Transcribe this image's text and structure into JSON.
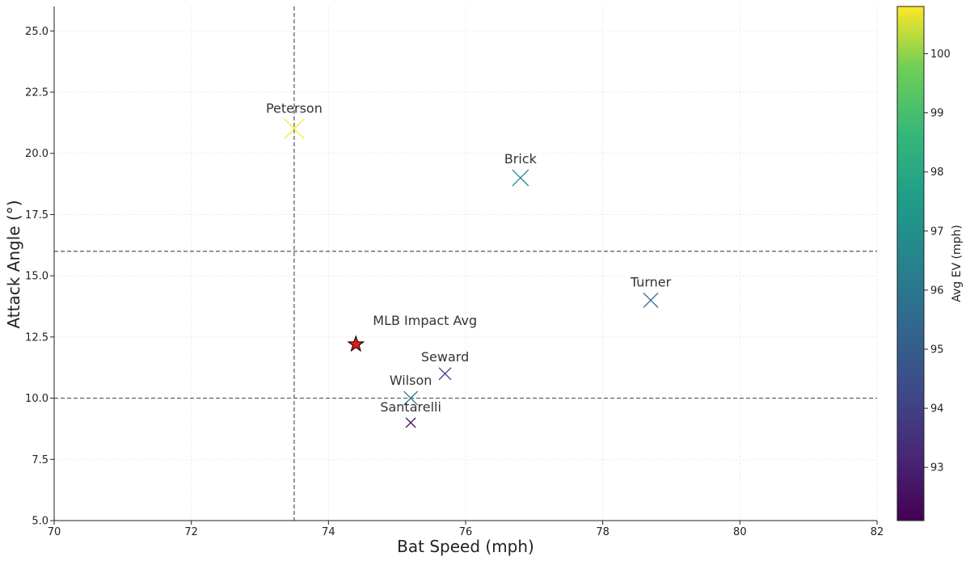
{
  "chart_data": {
    "type": "scatter",
    "title": "",
    "xlabel": "Bat Speed (mph)",
    "ylabel": "Attack Angle (°)",
    "xlim": [
      70,
      82
    ],
    "ylim": [
      5,
      26
    ],
    "xticks": [
      70,
      72,
      74,
      76,
      78,
      80,
      82
    ],
    "xtick_labels": [
      "70",
      "72",
      "74",
      "76",
      "78",
      "80",
      "82"
    ],
    "yticks": [
      5,
      7.5,
      10,
      12.5,
      15,
      17.5,
      20,
      22.5,
      25
    ],
    "ytick_labels": [
      "5.0",
      "7.5",
      "10.0",
      "12.5",
      "15.0",
      "17.5",
      "20.0",
      "22.5",
      "25.0"
    ],
    "grid": true,
    "reference_lines": {
      "vertical_x": [
        73.5
      ],
      "horizontal_y": [
        10,
        16
      ]
    },
    "points": [
      {
        "name": "Peterson",
        "x": 73.5,
        "y": 21,
        "ev": 100.8,
        "marker_size": 24
      },
      {
        "name": "Brick",
        "x": 76.8,
        "y": 19,
        "ev": 96.5,
        "marker_size": 20
      },
      {
        "name": "Turner",
        "x": 78.7,
        "y": 14,
        "ev": 95.3,
        "marker_size": 18
      },
      {
        "name": "Seward",
        "x": 75.7,
        "y": 11,
        "ev": 93.7,
        "marker_size": 15
      },
      {
        "name": "Wilson",
        "x": 75.2,
        "y": 10,
        "ev": 96.0,
        "marker_size": 17
      },
      {
        "name": "Santarelli",
        "x": 75.2,
        "y": 9,
        "ev": 92.4,
        "marker_size": 12
      }
    ],
    "reference_point": {
      "name": "MLB Impact Avg",
      "x": 74.4,
      "y": 12.2,
      "marker": "star",
      "color": "#e41a1c"
    },
    "colorbar": {
      "label": "Avg EV (mph)",
      "colormap": "viridis",
      "range": [
        92.1,
        100.8
      ],
      "ticks": [
        93,
        94,
        95,
        96,
        97,
        98,
        99,
        100
      ],
      "tick_labels": [
        "93",
        "94",
        "95",
        "96",
        "97",
        "98",
        "99",
        "100"
      ]
    }
  }
}
